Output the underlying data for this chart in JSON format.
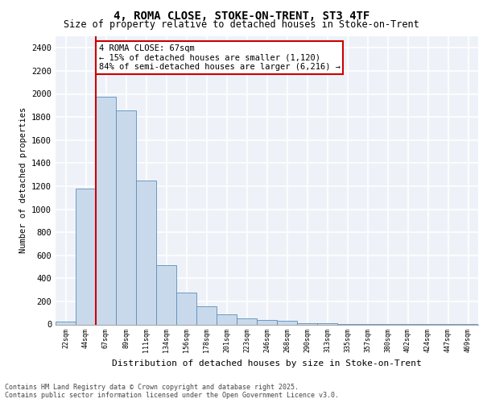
{
  "title": "4, ROMA CLOSE, STOKE-ON-TRENT, ST3 4TF",
  "subtitle": "Size of property relative to detached houses in Stoke-on-Trent",
  "xlabel": "Distribution of detached houses by size in Stoke-on-Trent",
  "ylabel": "Number of detached properties",
  "categories": [
    "22sqm",
    "44sqm",
    "67sqm",
    "89sqm",
    "111sqm",
    "134sqm",
    "156sqm",
    "178sqm",
    "201sqm",
    "223sqm",
    "246sqm",
    "268sqm",
    "290sqm",
    "313sqm",
    "335sqm",
    "357sqm",
    "380sqm",
    "402sqm",
    "424sqm",
    "447sqm",
    "469sqm"
  ],
  "values": [
    22,
    1175,
    1975,
    1855,
    1245,
    515,
    275,
    155,
    90,
    50,
    35,
    30,
    10,
    8,
    5,
    4,
    3,
    2,
    2,
    1,
    1
  ],
  "bar_color": "#c9d9ec",
  "bar_edge_color": "#5b8db8",
  "highlight_index": 2,
  "vline_color": "#cc0000",
  "annotation_text": "4 ROMA CLOSE: 67sqm\n← 15% of detached houses are smaller (1,120)\n84% of semi-detached houses are larger (6,216) →",
  "annotation_box_color": "#cc0000",
  "ylim": [
    0,
    2500
  ],
  "yticks": [
    0,
    200,
    400,
    600,
    800,
    1000,
    1200,
    1400,
    1600,
    1800,
    2000,
    2200,
    2400
  ],
  "background_color": "#eef2f8",
  "grid_color": "#ffffff",
  "footer_line1": "Contains HM Land Registry data © Crown copyright and database right 2025.",
  "footer_line2": "Contains public sector information licensed under the Open Government Licence v3.0."
}
